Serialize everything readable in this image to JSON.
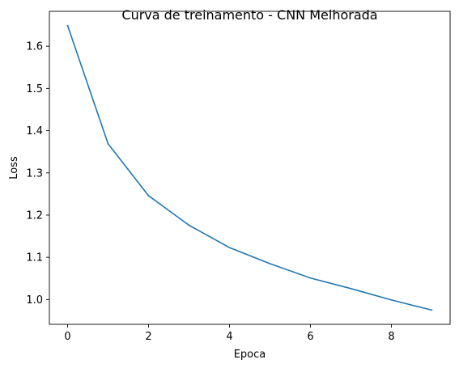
{
  "chart_data": {
    "type": "line",
    "title": "Curva de treinamento - CNN Melhorada",
    "xlabel": "Epoca",
    "ylabel": "Loss",
    "x": [
      0,
      1,
      2,
      3,
      4,
      5,
      6,
      7,
      8,
      9
    ],
    "series": [
      {
        "values": [
          1.649,
          1.369,
          1.246,
          1.176,
          1.123,
          1.085,
          1.051,
          1.026,
          0.999,
          0.975
        ],
        "color": "#1f77b4"
      }
    ],
    "xlim": [
      -0.45,
      9.45
    ],
    "ylim": [
      0.9413,
      1.6827
    ],
    "xticks": [
      0,
      2,
      4,
      6,
      8
    ],
    "xtick_labels": [
      "0",
      "2",
      "4",
      "6",
      "8"
    ],
    "yticks": [
      1.0,
      1.1,
      1.2,
      1.3,
      1.4,
      1.5,
      1.6
    ],
    "ytick_labels": [
      "1.0",
      "1.1",
      "1.2",
      "1.3",
      "1.4",
      "1.5",
      "1.6"
    ],
    "grid": false,
    "legend": "none"
  }
}
